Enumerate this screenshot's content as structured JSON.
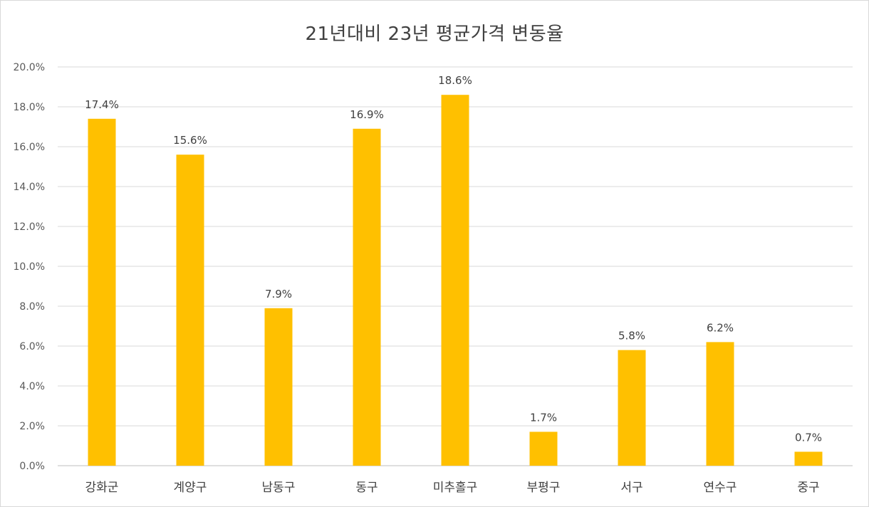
{
  "chart_data": {
    "type": "bar",
    "title": "21년대비 23년 평균가격 변동율",
    "categories": [
      "강화군",
      "계양구",
      "남동구",
      "동구",
      "미추홀구",
      "부평구",
      "서구",
      "연수구",
      "중구"
    ],
    "values": [
      17.4,
      15.6,
      7.9,
      16.9,
      18.6,
      1.7,
      5.8,
      6.2,
      0.7
    ],
    "data_labels": [
      "17.4%",
      "15.6%",
      "7.9%",
      "16.9%",
      "18.6%",
      "1.7%",
      "5.8%",
      "6.2%",
      "0.7%"
    ],
    "yticks": [
      0,
      2,
      4,
      6,
      8,
      10,
      12,
      14,
      16,
      18,
      20
    ],
    "ytick_labels": [
      "0.0%",
      "2.0%",
      "4.0%",
      "6.0%",
      "8.0%",
      "10.0%",
      "12.0%",
      "14.0%",
      "16.0%",
      "18.0%",
      "20.0%"
    ],
    "ylim": [
      0,
      20
    ],
    "xlabel": "",
    "ylabel": "",
    "grid": true,
    "legend": "none",
    "bar_color": "#FFC000"
  }
}
